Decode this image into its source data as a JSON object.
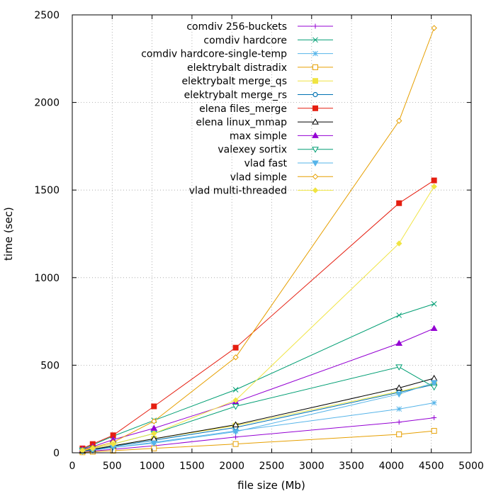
{
  "chart_data": {
    "type": "line",
    "xlabel": "file size (Mb)",
    "ylabel": "time (sec)",
    "xlim": [
      0,
      5000
    ],
    "ylim": [
      0,
      2500
    ],
    "x_ticks": [
      "0",
      "500",
      "1000",
      "1500",
      "2000",
      "2500",
      "3000",
      "3500",
      "4000",
      "4500",
      "5000"
    ],
    "y_ticks": [
      "0",
      "500",
      "1000",
      "1500",
      "2000",
      "2500"
    ],
    "grid": true,
    "legend_position": "top-right",
    "series": [
      {
        "name": "comdiv 256-buckets",
        "color": "#9400d3",
        "marker": "plus",
        "x": [
          128,
          256,
          512,
          1024,
          2048,
          4096,
          4535
        ],
        "y": [
          5,
          10,
          20,
          40,
          90,
          175,
          200
        ]
      },
      {
        "name": "comdiv hardcore",
        "color": "#009e73",
        "marker": "cross",
        "x": [
          128,
          256,
          512,
          1024,
          2048,
          4096,
          4535
        ],
        "y": [
          20,
          45,
          95,
          185,
          360,
          785,
          850
        ]
      },
      {
        "name": "comdiv hardcore-single-temp",
        "color": "#56b4e9",
        "marker": "star",
        "x": [
          128,
          256,
          512,
          1024,
          2048,
          4096,
          4535
        ],
        "y": [
          8,
          15,
          30,
          60,
          125,
          250,
          285
        ]
      },
      {
        "name": "elektrybalt distradix",
        "color": "#e69f00",
        "marker": "box",
        "x": [
          128,
          256,
          512,
          1024,
          2048,
          4096,
          4535
        ],
        "y": [
          3,
          6,
          12,
          25,
          50,
          105,
          125
        ]
      },
      {
        "name": "elektrybalt merge_qs",
        "color": "#f0e442",
        "marker": "box-filled",
        "x": [
          128,
          256,
          512,
          1024,
          2048,
          4096,
          4535
        ],
        "y": [
          10,
          20,
          40,
          80,
          155,
          350,
          395
        ]
      },
      {
        "name": "elektrybalt merge_rs",
        "color": "#0072b2",
        "marker": "circle",
        "x": [
          128,
          256,
          512,
          1024,
          2048,
          4096,
          4535
        ],
        "y": [
          9,
          18,
          36,
          72,
          145,
          345,
          390
        ]
      },
      {
        "name": "elena files_merge",
        "color": "#e51e10",
        "marker": "box-filled",
        "x": [
          128,
          256,
          512,
          1024,
          2048,
          4096,
          4535
        ],
        "y": [
          25,
          50,
          100,
          265,
          600,
          1425,
          1555
        ]
      },
      {
        "name": "elena linux_mmap",
        "color": "#000000",
        "marker": "triangle",
        "x": [
          128,
          256,
          512,
          1024,
          2048,
          4096,
          4535
        ],
        "y": [
          10,
          20,
          40,
          80,
          160,
          370,
          425
        ]
      },
      {
        "name": "max simple",
        "color": "#9400d3",
        "marker": "triangle-filled",
        "x": [
          128,
          256,
          512,
          1024,
          2048,
          4096,
          4535
        ],
        "y": [
          20,
          35,
          75,
          140,
          290,
          625,
          710
        ]
      },
      {
        "name": "valexey sortix",
        "color": "#009e73",
        "marker": "triangle-down",
        "x": [
          128,
          256,
          512,
          1024,
          2048,
          4096,
          4535
        ],
        "y": [
          15,
          25,
          50,
          110,
          265,
          490,
          375
        ]
      },
      {
        "name": "vlad fast",
        "color": "#56b4e9",
        "marker": "triangle-down-filled",
        "x": [
          128,
          256,
          512,
          1024,
          2048,
          4096,
          4535
        ],
        "y": [
          8,
          15,
          30,
          55,
          120,
          335,
          400
        ]
      },
      {
        "name": "vlad simple",
        "color": "#e69f00",
        "marker": "diamond",
        "x": [
          128,
          256,
          512,
          1024,
          2048,
          4096,
          4535
        ],
        "y": [
          15,
          30,
          60,
          180,
          545,
          1895,
          2425
        ]
      },
      {
        "name": "vlad multi-threaded",
        "color": "#f0e442",
        "marker": "diamond-filled",
        "x": [
          128,
          256,
          512,
          1024,
          2048,
          4096,
          4535
        ],
        "y": [
          12,
          25,
          50,
          110,
          300,
          1195,
          1520
        ]
      }
    ]
  }
}
